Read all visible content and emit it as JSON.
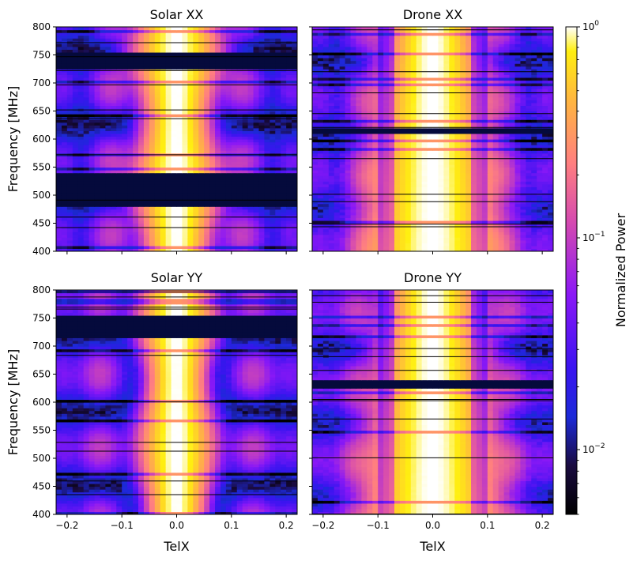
{
  "chart_data": {
    "type": "heatmap",
    "panels": [
      {
        "id": "solar_xx",
        "title": "Solar XX",
        "ylabel": "Frequency [MHz]",
        "xlabel": "",
        "source": "solar",
        "pol": "XX"
      },
      {
        "id": "drone_xx",
        "title": "Drone XX",
        "ylabel": "",
        "xlabel": "",
        "source": "drone",
        "pol": "XX"
      },
      {
        "id": "solar_yy",
        "title": "Solar YY",
        "ylabel": "Frequency [MHz]",
        "xlabel": "TelX",
        "source": "solar",
        "pol": "YY"
      },
      {
        "id": "drone_yy",
        "title": "Drone YY",
        "ylabel": "",
        "xlabel": "TelX",
        "source": "drone",
        "pol": "YY"
      }
    ],
    "x_range": [
      -0.22,
      0.22
    ],
    "x_ticks": [
      -0.2,
      -0.1,
      0.0,
      0.1,
      0.2
    ],
    "x_tick_labels": [
      "−0.2",
      "−0.1",
      "0.0",
      "0.1",
      "0.2"
    ],
    "y_range": [
      400,
      800
    ],
    "y_ticks": [
      400,
      450,
      500,
      550,
      600,
      650,
      700,
      750,
      800
    ],
    "y_tick_labels": [
      "400",
      "450",
      "500",
      "550",
      "600",
      "650",
      "700",
      "750",
      "800"
    ],
    "colorbar": {
      "label": "Normalized Power",
      "scale": "log",
      "range": [
        0.005,
        1.0
      ],
      "tick_labels": [
        "10",
        "0",
        "10",
        "−1",
        "10",
        "−2"
      ],
      "tick_values": [
        1.0,
        0.1,
        0.01
      ],
      "colormap": "gnuplot2"
    },
    "flagged_bands_mhz": {
      "solar_xx": [
        [
          723,
          757
        ],
        [
          480,
          540
        ]
      ],
      "drone_xx": [
        [
          610,
          622
        ]
      ],
      "solar_yy": [
        [
          715,
          757
        ]
      ],
      "drone_yy": [
        [
          625,
          642
        ]
      ]
    }
  }
}
